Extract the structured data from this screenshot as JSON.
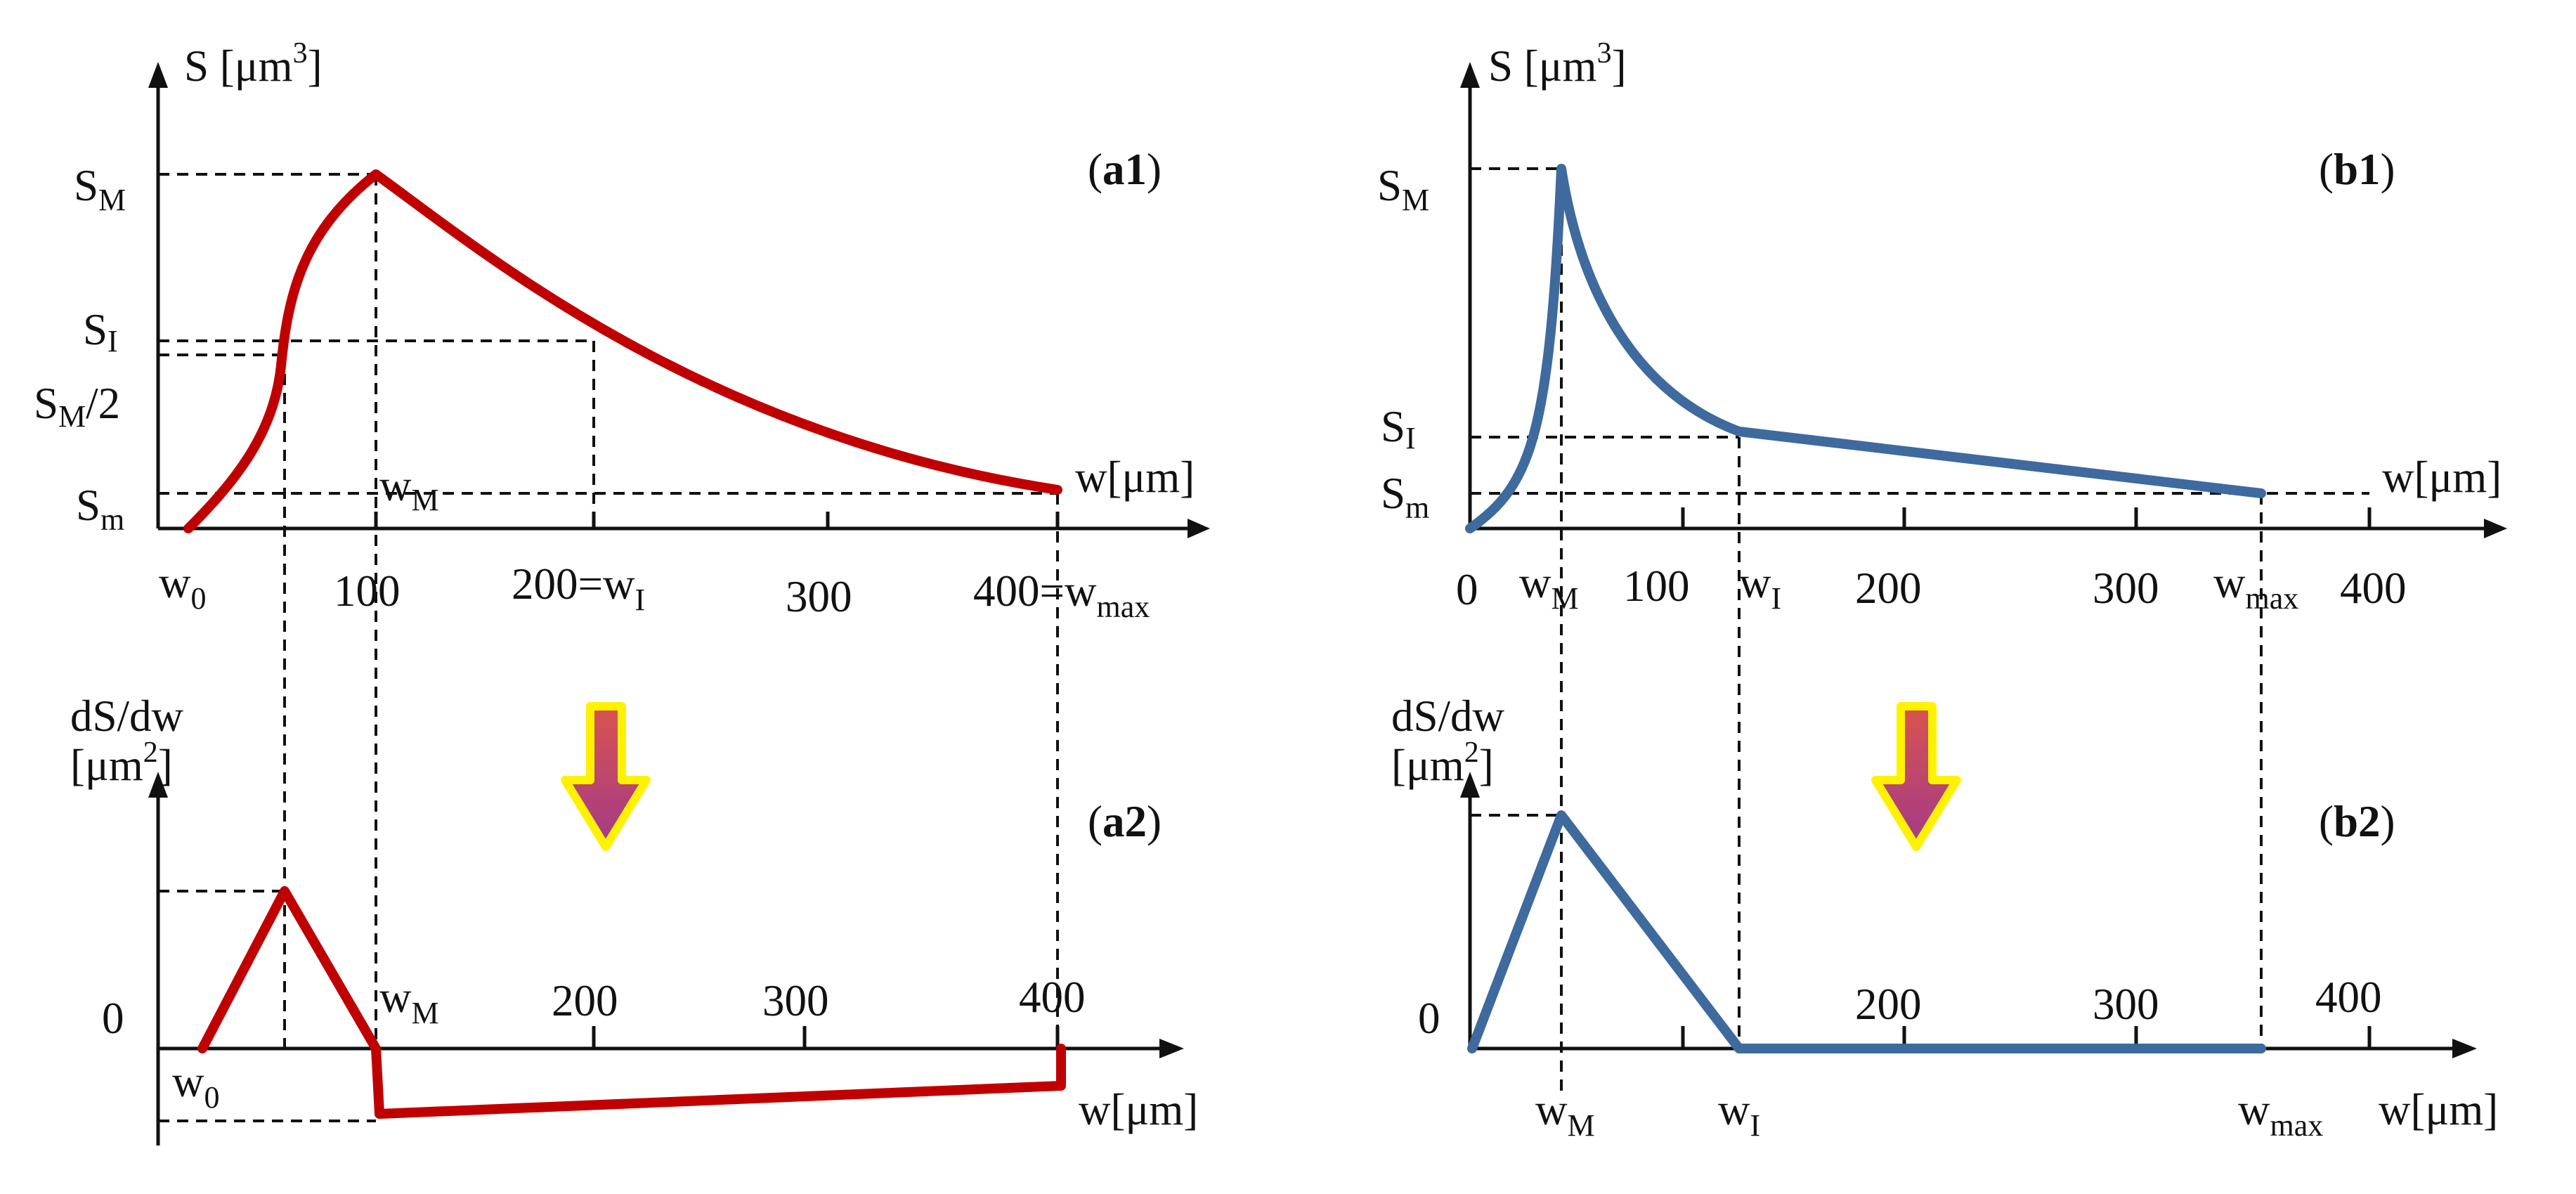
{
  "colors": {
    "red_curve": "#C00000",
    "blue_curve": "#3E6A9E",
    "arrow_fill_top": "#D9534F",
    "arrow_fill_bottom": "#A33A8A",
    "arrow_outline": "#FFF200"
  },
  "panels": {
    "a1": {
      "title": "a1",
      "y_axis": {
        "symbol": "S",
        "unit_prefix": "[μm",
        "unit_exp": "3",
        "unit_suffix": "]"
      },
      "x_axis": {
        "label": "w[μm]"
      },
      "y_labels": {
        "max": "S",
        "max_sub": "M",
        "inflection": "S",
        "inflection_sub": "I",
        "half": "S",
        "half_sub": "M",
        "half_suffix": "/2",
        "min": "S",
        "min_sub": "m"
      },
      "x_labels": {
        "w0": "w",
        "w0_sub": "0",
        "t100": "100",
        "t200": "200=w",
        "t200_sub": "I",
        "t300": "300",
        "t400": "400=w",
        "t400_sub": "max",
        "wM": "w",
        "wM_sub": "M"
      }
    },
    "a2": {
      "title": "a2",
      "y_axis": {
        "line1": "dS/dw",
        "unit_prefix": "[μm",
        "unit_exp": "2",
        "unit_suffix": "]"
      },
      "x_axis": {
        "label": "w[μm]"
      },
      "y_labels": {
        "zero": "0"
      },
      "x_labels": {
        "w0": "w",
        "w0_sub": "0",
        "wM": "w",
        "wM_sub": "M",
        "t200": "200",
        "t300": "300",
        "t400": "400"
      }
    },
    "b1": {
      "title": "b1",
      "y_axis": {
        "symbol": "S",
        "unit_prefix": "[μm",
        "unit_exp": "3",
        "unit_suffix": "]"
      },
      "x_axis": {
        "label": "w[μm]"
      },
      "y_labels": {
        "max": "S",
        "max_sub": "M",
        "inflection": "S",
        "inflection_sub": "I",
        "min": "S",
        "min_sub": "m"
      },
      "x_labels": {
        "t0": "0",
        "wM": "w",
        "wM_sub": "M",
        "t100": "100",
        "wI": "w",
        "wI_sub": "I",
        "t200": "200",
        "t300": "300",
        "wmax": "w",
        "wmax_sub": "max",
        "t400": "400"
      }
    },
    "b2": {
      "title": "b2",
      "y_axis": {
        "line1": "dS/dw",
        "unit_prefix": "[μm",
        "unit_exp": "2",
        "unit_suffix": "]"
      },
      "x_axis": {
        "label": "w[μm]"
      },
      "y_labels": {
        "zero": "0"
      },
      "x_labels": {
        "t200": "200",
        "t300": "300",
        "t400": "400",
        "wM": "w",
        "wM_sub": "M",
        "wI": "w",
        "wI_sub": "I",
        "wmax": "w",
        "wmax_sub": "max"
      }
    }
  }
}
